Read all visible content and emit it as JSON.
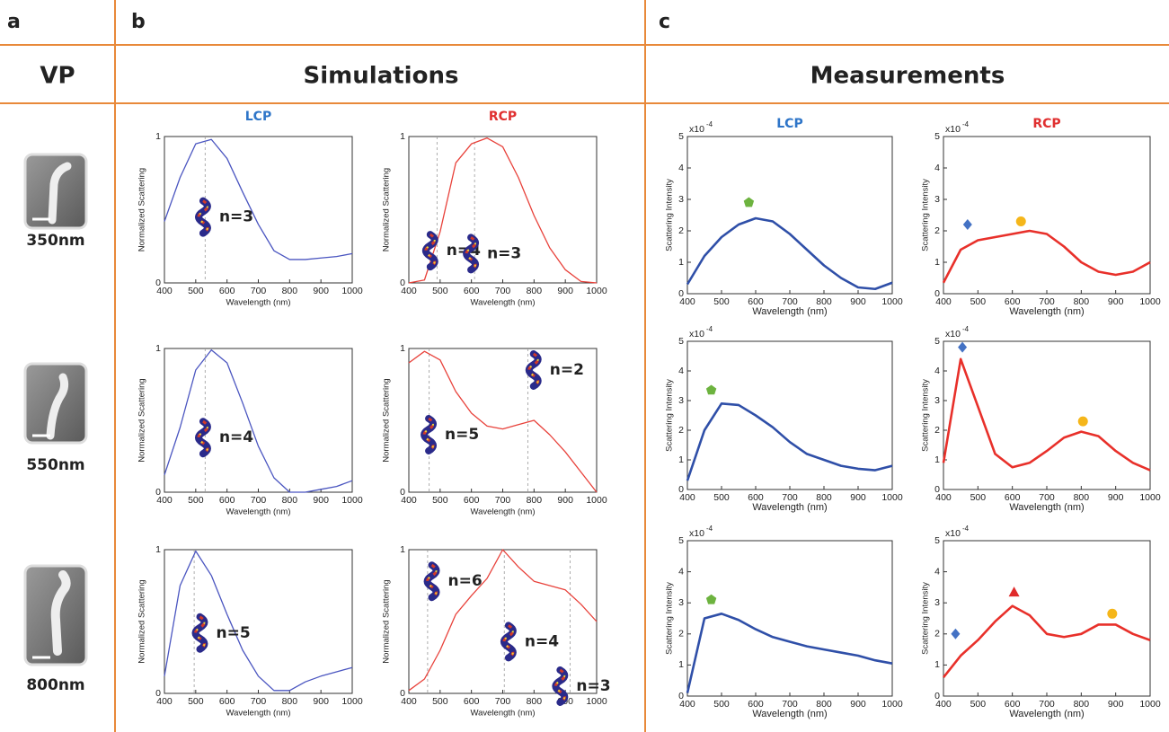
{
  "panel_labels": [
    "a",
    "b",
    "c"
  ],
  "headers": {
    "vp": "VP",
    "simulations": "Simulations",
    "measurements": "Measurements"
  },
  "sizes": [
    "350nm",
    "550nm",
    "800nm"
  ],
  "chart_data": [
    {
      "type": "line",
      "title": "LCP",
      "title_color": "#2e75c8",
      "xlabel": "Wavelength (nm)",
      "ylabel": "Normalized Scattering",
      "x": [
        400,
        450,
        500,
        550,
        600,
        650,
        700,
        750,
        800,
        850,
        900,
        950,
        1000
      ],
      "series": [
        {
          "color": "#4a55c0",
          "values": [
            0.42,
            0.72,
            0.95,
            0.98,
            0.85,
            0.62,
            0.4,
            0.22,
            0.16,
            0.16,
            0.17,
            0.18,
            0.2
          ]
        }
      ],
      "xlim": [
        400,
        1000
      ],
      "xticks": [
        400,
        500,
        600,
        700,
        800,
        900,
        1000
      ],
      "ylim": [
        0,
        1
      ],
      "yticks": [
        0,
        1
      ],
      "vlines": [
        530
      ],
      "annotations": [
        "n=3"
      ]
    },
    {
      "type": "line",
      "title": "RCP",
      "title_color": "#e03030",
      "xlabel": "Wavelength (nm)",
      "ylabel": "Normalized Scattering",
      "x": [
        400,
        450,
        500,
        550,
        600,
        650,
        700,
        750,
        800,
        850,
        900,
        950,
        1000
      ],
      "series": [
        {
          "color": "#e8413a",
          "values": [
            0,
            0.02,
            0.35,
            0.82,
            0.95,
            0.99,
            0.93,
            0.72,
            0.46,
            0.24,
            0.09,
            0.01,
            0
          ]
        }
      ],
      "xlim": [
        400,
        1000
      ],
      "xticks": [
        400,
        500,
        600,
        700,
        800,
        900,
        1000
      ],
      "ylim": [
        0,
        1
      ],
      "yticks": [
        0,
        1
      ],
      "vlines": [
        490,
        610
      ],
      "annotations": [
        "n=4",
        "n=3"
      ]
    },
    {
      "type": "line",
      "xlabel": "Wavelength (nm)",
      "ylabel": "Normalized Scattering",
      "x": [
        400,
        450,
        500,
        550,
        600,
        650,
        700,
        750,
        800,
        850,
        900,
        950,
        1000
      ],
      "series": [
        {
          "color": "#4a55c0",
          "values": [
            0.12,
            0.45,
            0.85,
            0.99,
            0.9,
            0.62,
            0.32,
            0.1,
            0,
            0,
            0.02,
            0.04,
            0.08
          ]
        }
      ],
      "xlim": [
        400,
        1000
      ],
      "xticks": [
        400,
        500,
        600,
        700,
        800,
        900,
        1000
      ],
      "ylim": [
        0,
        1
      ],
      "yticks": [
        0,
        1
      ],
      "vlines": [
        530
      ],
      "annotations": [
        "n=4"
      ]
    },
    {
      "type": "line",
      "xlabel": "Wavelength (nm)",
      "ylabel": "Normalized Scattering",
      "x": [
        400,
        450,
        500,
        550,
        600,
        650,
        700,
        750,
        800,
        850,
        900,
        950,
        1000
      ],
      "series": [
        {
          "color": "#e8413a",
          "values": [
            0.9,
            0.98,
            0.92,
            0.7,
            0.55,
            0.46,
            0.44,
            0.47,
            0.5,
            0.4,
            0.28,
            0.14,
            0
          ]
        }
      ],
      "xlim": [
        400,
        1000
      ],
      "xticks": [
        400,
        500,
        600,
        700,
        800,
        900,
        1000
      ],
      "ylim": [
        0,
        1
      ],
      "yticks": [
        0,
        1
      ],
      "vlines": [
        465,
        780
      ],
      "annotations": [
        "n=5",
        "n=2"
      ]
    },
    {
      "type": "line",
      "xlabel": "Wavelength (nm)",
      "ylabel": "Normalized Scattering",
      "x": [
        400,
        450,
        500,
        550,
        600,
        650,
        700,
        750,
        800,
        850,
        900,
        950,
        1000
      ],
      "series": [
        {
          "color": "#4a55c0",
          "values": [
            0.12,
            0.75,
            0.99,
            0.82,
            0.55,
            0.3,
            0.12,
            0.02,
            0.02,
            0.08,
            0.12,
            0.15,
            0.18
          ]
        }
      ],
      "xlim": [
        400,
        1000
      ],
      "xticks": [
        400,
        500,
        600,
        700,
        800,
        900,
        1000
      ],
      "ylim": [
        0,
        1
      ],
      "yticks": [
        0,
        1
      ],
      "vlines": [
        495
      ],
      "annotations": [
        "n=5"
      ]
    },
    {
      "type": "line",
      "xlabel": "Wavelength (nm)",
      "ylabel": "Normalized Scattering",
      "x": [
        400,
        450,
        500,
        550,
        600,
        650,
        700,
        750,
        800,
        850,
        900,
        950,
        1000
      ],
      "series": [
        {
          "color": "#e8413a",
          "values": [
            0.02,
            0.1,
            0.3,
            0.55,
            0.68,
            0.8,
            1.0,
            0.88,
            0.78,
            0.75,
            0.72,
            0.62,
            0.5
          ]
        }
      ],
      "xlim": [
        400,
        1000
      ],
      "xticks": [
        400,
        500,
        600,
        700,
        800,
        900,
        1000
      ],
      "ylim": [
        0,
        1
      ],
      "yticks": [
        0,
        1
      ],
      "vlines": [
        460,
        705,
        915
      ],
      "annotations": [
        "n=6",
        "n=4",
        "n=3"
      ]
    },
    {
      "type": "line",
      "title": "LCP",
      "title_color": "#2e75c8",
      "xlabel": "Wavelength (nm)",
      "ylabel": "Scattering Intensity",
      "scale_base": "x10",
      "scale_exp": "-4",
      "x": [
        400,
        450,
        500,
        550,
        600,
        650,
        700,
        750,
        800,
        850,
        900,
        950,
        1000
      ],
      "series": [
        {
          "color": "#2f4fa8",
          "values": [
            0.3,
            1.2,
            1.8,
            2.2,
            2.4,
            2.3,
            1.9,
            1.4,
            0.9,
            0.5,
            0.2,
            0.15,
            0.35
          ]
        }
      ],
      "xlim": [
        400,
        1000
      ],
      "xticks": [
        400,
        500,
        600,
        700,
        800,
        900,
        1000
      ],
      "ylim": [
        0,
        5
      ],
      "yticks": [
        0,
        1,
        2,
        3,
        4,
        5
      ],
      "markers": [
        {
          "shape": "pentagon",
          "color": "#6db33f",
          "x": 580,
          "y": 2.9
        }
      ]
    },
    {
      "type": "line",
      "title": "RCP",
      "title_color": "#e03030",
      "xlabel": "Wavelength (nm)",
      "ylabel": "Scattering Intensity",
      "scale_base": "x10",
      "scale_exp": "-4",
      "x": [
        400,
        450,
        500,
        550,
        600,
        650,
        700,
        750,
        800,
        850,
        900,
        950,
        1000
      ],
      "series": [
        {
          "color": "#e8302a",
          "values": [
            0.35,
            1.4,
            1.7,
            1.8,
            1.9,
            2.0,
            1.9,
            1.5,
            1.0,
            0.7,
            0.6,
            0.7,
            1.0
          ]
        }
      ],
      "xlim": [
        400,
        1000
      ],
      "xticks": [
        400,
        500,
        600,
        700,
        800,
        900,
        1000
      ],
      "ylim": [
        0,
        5
      ],
      "yticks": [
        0,
        1,
        2,
        3,
        4,
        5
      ],
      "markers": [
        {
          "shape": "diamond",
          "color": "#4472c4",
          "x": 470,
          "y": 2.2
        },
        {
          "shape": "circle",
          "color": "#f5b61a",
          "x": 625,
          "y": 2.3
        }
      ]
    },
    {
      "type": "line",
      "xlabel": "Wavelength (nm)",
      "ylabel": "Scattering Intensity",
      "scale_base": "x10",
      "scale_exp": "-4",
      "x": [
        400,
        450,
        500,
        550,
        600,
        650,
        700,
        750,
        800,
        850,
        900,
        950,
        1000
      ],
      "series": [
        {
          "color": "#2f4fa8",
          "values": [
            0.3,
            2.0,
            2.9,
            2.85,
            2.5,
            2.1,
            1.6,
            1.2,
            1.0,
            0.8,
            0.7,
            0.65,
            0.8
          ]
        }
      ],
      "xlim": [
        400,
        1000
      ],
      "xticks": [
        400,
        500,
        600,
        700,
        800,
        900,
        1000
      ],
      "ylim": [
        0,
        5
      ],
      "yticks": [
        0,
        1,
        2,
        3,
        4,
        5
      ],
      "markers": [
        {
          "shape": "pentagon",
          "color": "#6db33f",
          "x": 470,
          "y": 3.35
        }
      ]
    },
    {
      "type": "line",
      "xlabel": "Wavelength (nm)",
      "ylabel": "Scattering Intensity",
      "scale_base": "x10",
      "scale_exp": "-4",
      "x": [
        400,
        450,
        500,
        550,
        600,
        650,
        700,
        750,
        800,
        850,
        900,
        950,
        1000
      ],
      "series": [
        {
          "color": "#e8302a",
          "values": [
            0.9,
            4.4,
            2.8,
            1.2,
            0.75,
            0.9,
            1.3,
            1.75,
            1.95,
            1.8,
            1.3,
            0.9,
            0.65
          ]
        }
      ],
      "xlim": [
        400,
        1000
      ],
      "xticks": [
        400,
        500,
        600,
        700,
        800,
        900,
        1000
      ],
      "ylim": [
        0,
        5
      ],
      "yticks": [
        0,
        1,
        2,
        3,
        4,
        5
      ],
      "markers": [
        {
          "shape": "diamond",
          "color": "#4472c4",
          "x": 455,
          "y": 4.8
        },
        {
          "shape": "circle",
          "color": "#f5b61a",
          "x": 805,
          "y": 2.3
        }
      ]
    },
    {
      "type": "line",
      "xlabel": "Wavelength (nm)",
      "ylabel": "Scattering Intensity",
      "scale_base": "x10",
      "scale_exp": "-4",
      "x": [
        400,
        450,
        500,
        550,
        600,
        650,
        700,
        750,
        800,
        850,
        900,
        950,
        1000
      ],
      "series": [
        {
          "color": "#2f4fa8",
          "values": [
            0.1,
            2.5,
            2.65,
            2.45,
            2.15,
            1.9,
            1.75,
            1.6,
            1.5,
            1.4,
            1.3,
            1.15,
            1.05
          ]
        }
      ],
      "xlim": [
        400,
        1000
      ],
      "xticks": [
        400,
        500,
        600,
        700,
        800,
        900,
        1000
      ],
      "ylim": [
        0,
        5
      ],
      "yticks": [
        0,
        1,
        2,
        3,
        4,
        5
      ],
      "markers": [
        {
          "shape": "pentagon",
          "color": "#6db33f",
          "x": 470,
          "y": 3.1
        }
      ]
    },
    {
      "type": "line",
      "xlabel": "Wavelength (nm)",
      "ylabel": "Scattering Intensity",
      "scale_base": "x10",
      "scale_exp": "-4",
      "x": [
        400,
        450,
        500,
        550,
        600,
        650,
        700,
        750,
        800,
        850,
        900,
        950,
        1000
      ],
      "series": [
        {
          "color": "#e8302a",
          "values": [
            0.6,
            1.3,
            1.8,
            2.4,
            2.9,
            2.6,
            2.0,
            1.9,
            2.0,
            2.3,
            2.3,
            2.0,
            1.8
          ]
        }
      ],
      "xlim": [
        400,
        1000
      ],
      "xticks": [
        400,
        500,
        600,
        700,
        800,
        900,
        1000
      ],
      "ylim": [
        0,
        5
      ],
      "yticks": [
        0,
        1,
        2,
        3,
        4,
        5
      ],
      "markers": [
        {
          "shape": "diamond",
          "color": "#4472c4",
          "x": 435,
          "y": 2.0
        },
        {
          "shape": "triangle",
          "color": "#e02b2b",
          "x": 605,
          "y": 3.35
        },
        {
          "shape": "circle",
          "color": "#f5b61a",
          "x": 890,
          "y": 2.65
        }
      ]
    }
  ]
}
